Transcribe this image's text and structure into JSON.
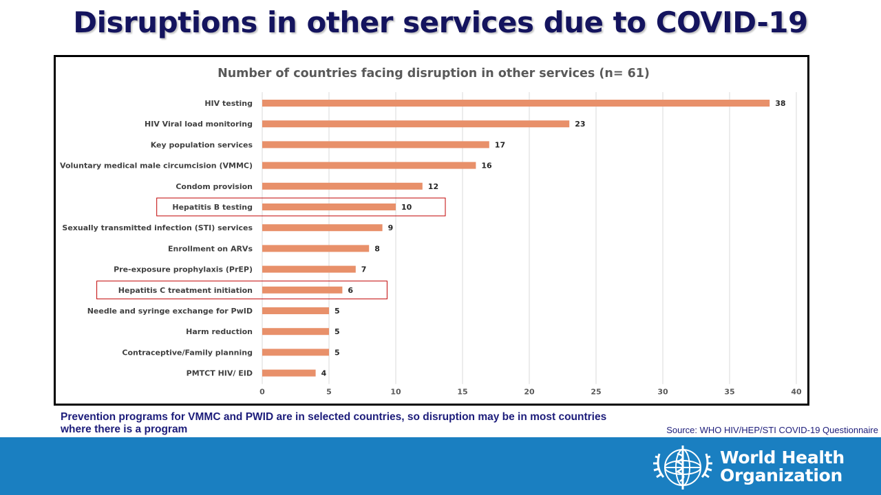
{
  "slide": {
    "title": "Disruptions in other services due to COVID-19",
    "note": "Prevention programs for VMMC and PWID are in selected countries, so disruption may be in most countries where there is a program",
    "source": "Source: WHO HIV/HEP/STI  COVID-19 Questionnaire"
  },
  "footer": {
    "org_line1": "World Health",
    "org_line2": "Organization",
    "bar_color": "#1a7fc1"
  },
  "chart_data": {
    "type": "bar",
    "orientation": "horizontal",
    "title": "Number of countries facing disruption in other services (n= 61)",
    "categories": [
      "HIV testing",
      "HIV Viral load monitoring",
      "Key population services",
      "Voluntary medical male circumcision (VMMC)",
      "Condom provision",
      "Hepatitis B testing",
      "Sexually transmitted infection (STI) services",
      "Enrollment on ARVs",
      "Pre-exposure prophylaxis (PrEP)",
      "Hepatitis C treatment initiation",
      "Needle and syringe exchange for PwID",
      "Harm reduction",
      "Contraceptive/Family planning",
      "PMTCT HIV/ EID"
    ],
    "values": [
      38,
      23,
      17,
      16,
      12,
      10,
      9,
      8,
      7,
      6,
      5,
      5,
      5,
      4
    ],
    "highlighted": [
      "Hepatitis B testing",
      "Hepatitis C treatment initiation"
    ],
    "xlim": [
      0,
      40
    ],
    "xticks": [
      0,
      5,
      10,
      15,
      20,
      25,
      30,
      35,
      40
    ],
    "grid": true,
    "bar_color": "#e8906a",
    "highlight_color": "#c00000"
  }
}
